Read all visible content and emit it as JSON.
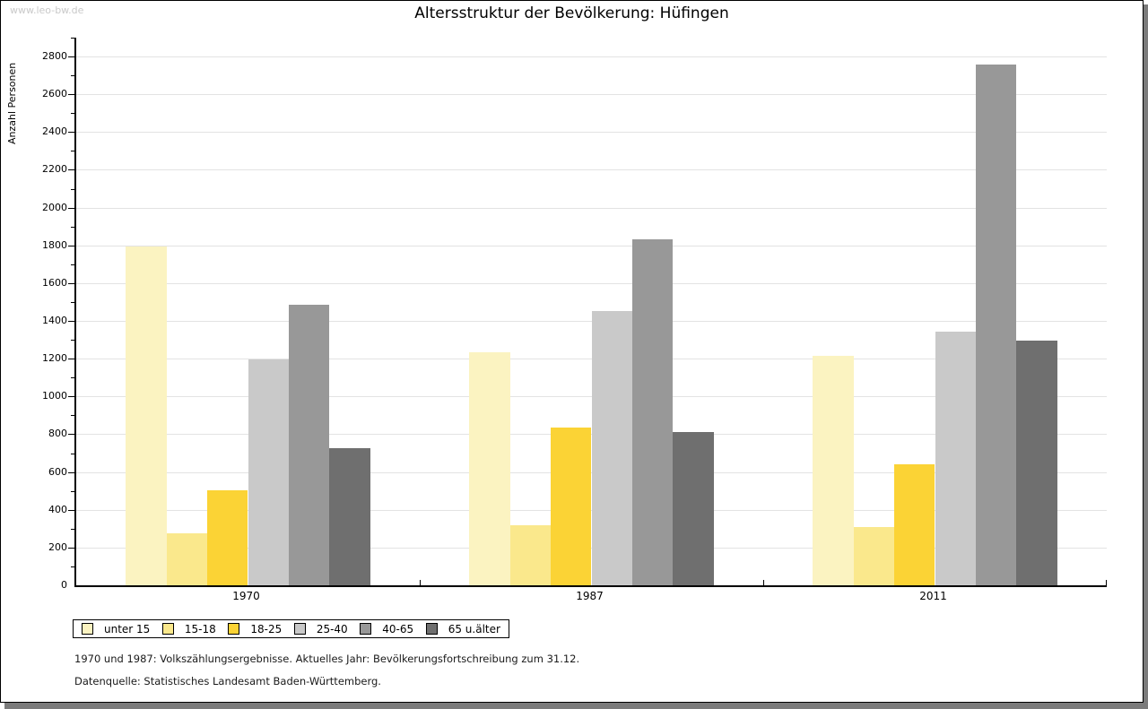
{
  "watermark": "www.leo-bw.de",
  "title": "Altersstruktur der Bevölkerung: Hüfingen",
  "chart_data": {
    "type": "bar",
    "title": "Altersstruktur der Bevölkerung: Hüfingen",
    "xlabel": "",
    "ylabel": "Anzahl Personen",
    "ylim": [
      0,
      2900
    ],
    "ytick_step": 200,
    "yticks": [
      0,
      200,
      400,
      600,
      800,
      1000,
      1200,
      1400,
      1600,
      1800,
      2000,
      2200,
      2400,
      2600,
      2800
    ],
    "grid": true,
    "legend_position": "bottom-left",
    "categories": [
      "1970",
      "1987",
      "2011"
    ],
    "series": [
      {
        "name": "unter 15",
        "color": "#fbf3c1",
        "values": [
          1795,
          1232,
          1214
        ]
      },
      {
        "name": "15-18",
        "color": "#fae88c",
        "values": [
          275,
          316,
          310
        ]
      },
      {
        "name": "18-25",
        "color": "#fbd335",
        "values": [
          502,
          835,
          641
        ]
      },
      {
        "name": "25-40",
        "color": "#c9c9c9",
        "values": [
          1196,
          1453,
          1342
        ]
      },
      {
        "name": "40-65",
        "color": "#989898",
        "values": [
          1487,
          1832,
          2757
        ]
      },
      {
        "name": "65 u.älter",
        "color": "#6f6f6f",
        "values": [
          728,
          812,
          1297
        ]
      }
    ]
  },
  "footer": {
    "line1": "1970 und 1987: Volkszählungsergebnisse. Aktuelles Jahr: Bevölkerungsfortschreibung zum 31.12.",
    "line2": "Datenquelle: Statistisches Landesamt Baden-Württemberg."
  },
  "colors": {
    "gridline": "#e3e3e3",
    "axis": "#000000",
    "shadow": "#7b7b7b",
    "watermark": "#c9c9c9"
  }
}
